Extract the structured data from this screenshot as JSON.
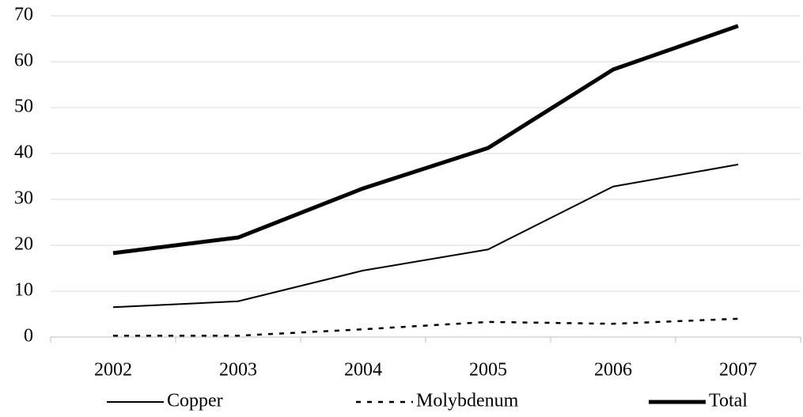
{
  "chart_data": {
    "type": "line",
    "categories": [
      "2002",
      "2003",
      "2004",
      "2005",
      "2006",
      "2007"
    ],
    "series": [
      {
        "name": "Copper",
        "color": "#000000",
        "width": 2,
        "dash": "none",
        "values": [
          6.5,
          7.8,
          14.5,
          19.1,
          32.8,
          37.6
        ]
      },
      {
        "name": "Molybdenum",
        "color": "#000000",
        "width": 2.5,
        "dash": "6 8",
        "values": [
          0.3,
          0.3,
          1.7,
          3.3,
          2.9,
          4.0
        ]
      },
      {
        "name": "Total",
        "color": "#000000",
        "width": 5,
        "dash": "none",
        "values": [
          18.3,
          21.7,
          32.4,
          41.2,
          58.3,
          67.8
        ]
      }
    ],
    "ylim": [
      0,
      70
    ],
    "yticks": [
      0,
      10,
      20,
      30,
      40,
      50,
      60,
      70
    ],
    "grid": true,
    "legend": "bottom"
  }
}
